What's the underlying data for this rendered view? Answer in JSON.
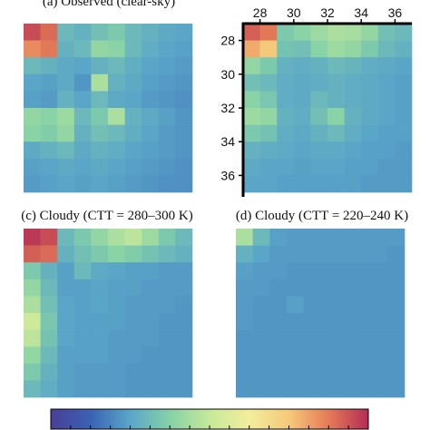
{
  "colorbar": {
    "colors": [
      "#4a3f97",
      "#3a62b5",
      "#5aa6c8",
      "#86d2a6",
      "#c6e89a",
      "#f3ee9d",
      "#f5c97a",
      "#e57b57",
      "#b42c55"
    ]
  },
  "chart_data": [
    {
      "type": "heatmap",
      "title": "(a) Observed (clear-sky)",
      "rows": 10,
      "cols": 10,
      "values": [
        [
          0.95,
          0.9,
          0.3,
          0.28,
          0.32,
          0.35,
          0.3,
          0.28,
          0.26,
          0.25
        ],
        [
          0.85,
          0.88,
          0.28,
          0.3,
          0.4,
          0.38,
          0.3,
          0.27,
          0.25,
          0.24
        ],
        [
          0.3,
          0.28,
          0.26,
          0.25,
          0.28,
          0.3,
          0.27,
          0.25,
          0.24,
          0.23
        ],
        [
          0.25,
          0.24,
          0.26,
          0.22,
          0.45,
          0.28,
          0.26,
          0.24,
          0.23,
          0.22
        ],
        [
          0.24,
          0.23,
          0.28,
          0.25,
          0.3,
          0.26,
          0.25,
          0.23,
          0.22,
          0.21
        ],
        [
          0.4,
          0.38,
          0.42,
          0.3,
          0.35,
          0.45,
          0.28,
          0.26,
          0.24,
          0.22
        ],
        [
          0.38,
          0.36,
          0.4,
          0.28,
          0.32,
          0.3,
          0.27,
          0.25,
          0.23,
          0.22
        ],
        [
          0.26,
          0.28,
          0.3,
          0.26,
          0.28,
          0.27,
          0.25,
          0.24,
          0.23,
          0.22
        ],
        [
          0.24,
          0.25,
          0.26,
          0.25,
          0.26,
          0.25,
          0.24,
          0.23,
          0.22,
          0.21
        ],
        [
          0.23,
          0.24,
          0.25,
          0.24,
          0.25,
          0.24,
          0.23,
          0.22,
          0.21,
          0.21
        ]
      ]
    },
    {
      "type": "heatmap",
      "title": "",
      "rows": 10,
      "cols": 10,
      "x_tick_labels": [
        "28",
        "30",
        "32",
        "34",
        "36"
      ],
      "y_tick_labels": [
        "28",
        "30",
        "32",
        "34",
        "36"
      ],
      "values": [
        [
          0.92,
          0.88,
          0.35,
          0.38,
          0.42,
          0.45,
          0.44,
          0.4,
          0.32,
          0.3
        ],
        [
          0.8,
          0.75,
          0.33,
          0.32,
          0.38,
          0.42,
          0.4,
          0.35,
          0.3,
          0.28
        ],
        [
          0.4,
          0.35,
          0.28,
          0.27,
          0.28,
          0.3,
          0.29,
          0.27,
          0.26,
          0.25
        ],
        [
          0.32,
          0.3,
          0.27,
          0.26,
          0.27,
          0.28,
          0.27,
          0.26,
          0.25,
          0.24
        ],
        [
          0.38,
          0.34,
          0.27,
          0.26,
          0.3,
          0.28,
          0.27,
          0.26,
          0.25,
          0.24
        ],
        [
          0.42,
          0.4,
          0.28,
          0.27,
          0.32,
          0.38,
          0.28,
          0.26,
          0.25,
          0.24
        ],
        [
          0.35,
          0.33,
          0.27,
          0.26,
          0.28,
          0.3,
          0.27,
          0.25,
          0.24,
          0.24
        ],
        [
          0.28,
          0.27,
          0.26,
          0.25,
          0.26,
          0.26,
          0.25,
          0.24,
          0.24,
          0.23
        ],
        [
          0.26,
          0.25,
          0.25,
          0.24,
          0.25,
          0.25,
          0.24,
          0.24,
          0.23,
          0.23
        ],
        [
          0.25,
          0.25,
          0.24,
          0.24,
          0.24,
          0.24,
          0.24,
          0.23,
          0.23,
          0.23
        ]
      ]
    },
    {
      "type": "heatmap",
      "title": "(c) Cloudy (CTT = 280–300 K)",
      "rows": 10,
      "cols": 10,
      "values": [
        [
          0.98,
          0.95,
          0.3,
          0.35,
          0.4,
          0.45,
          0.48,
          0.42,
          0.35,
          0.3
        ],
        [
          0.92,
          0.9,
          0.28,
          0.32,
          0.35,
          0.38,
          0.36,
          0.33,
          0.3,
          0.28
        ],
        [
          0.35,
          0.28,
          0.24,
          0.3,
          0.26,
          0.25,
          0.24,
          0.24,
          0.23,
          0.23
        ],
        [
          0.4,
          0.3,
          0.24,
          0.24,
          0.25,
          0.24,
          0.24,
          0.23,
          0.23,
          0.23
        ],
        [
          0.45,
          0.32,
          0.25,
          0.24,
          0.25,
          0.24,
          0.23,
          0.23,
          0.23,
          0.22
        ],
        [
          0.52,
          0.34,
          0.25,
          0.24,
          0.24,
          0.24,
          0.23,
          0.23,
          0.22,
          0.22
        ],
        [
          0.48,
          0.33,
          0.25,
          0.24,
          0.24,
          0.23,
          0.23,
          0.23,
          0.22,
          0.22
        ],
        [
          0.4,
          0.3,
          0.24,
          0.24,
          0.24,
          0.23,
          0.23,
          0.22,
          0.22,
          0.22
        ],
        [
          0.35,
          0.28,
          0.24,
          0.23,
          0.23,
          0.23,
          0.22,
          0.22,
          0.22,
          0.22
        ],
        [
          0.3,
          0.27,
          0.24,
          0.23,
          0.23,
          0.23,
          0.22,
          0.22,
          0.22,
          0.22
        ]
      ]
    },
    {
      "type": "heatmap",
      "title": "(d) Cloudy (CTT = 220–240 K)",
      "rows": 10,
      "cols": 10,
      "values": [
        [
          0.45,
          0.3,
          0.24,
          0.23,
          0.23,
          0.23,
          0.23,
          0.23,
          0.23,
          0.23
        ],
        [
          0.28,
          0.25,
          0.23,
          0.23,
          0.23,
          0.23,
          0.23,
          0.23,
          0.23,
          0.22
        ],
        [
          0.24,
          0.23,
          0.23,
          0.22,
          0.22,
          0.22,
          0.22,
          0.22,
          0.22,
          0.22
        ],
        [
          0.23,
          0.23,
          0.22,
          0.22,
          0.22,
          0.22,
          0.22,
          0.22,
          0.22,
          0.22
        ],
        [
          0.23,
          0.22,
          0.22,
          0.24,
          0.22,
          0.22,
          0.22,
          0.22,
          0.22,
          0.22
        ],
        [
          0.23,
          0.22,
          0.22,
          0.22,
          0.22,
          0.22,
          0.22,
          0.22,
          0.22,
          0.22
        ],
        [
          0.22,
          0.22,
          0.22,
          0.22,
          0.22,
          0.22,
          0.22,
          0.22,
          0.22,
          0.22
        ],
        [
          0.22,
          0.22,
          0.22,
          0.22,
          0.22,
          0.22,
          0.22,
          0.22,
          0.22,
          0.22
        ],
        [
          0.22,
          0.22,
          0.22,
          0.22,
          0.22,
          0.22,
          0.22,
          0.22,
          0.22,
          0.22
        ],
        [
          0.22,
          0.22,
          0.22,
          0.22,
          0.22,
          0.22,
          0.22,
          0.22,
          0.22,
          0.22
        ]
      ]
    }
  ]
}
